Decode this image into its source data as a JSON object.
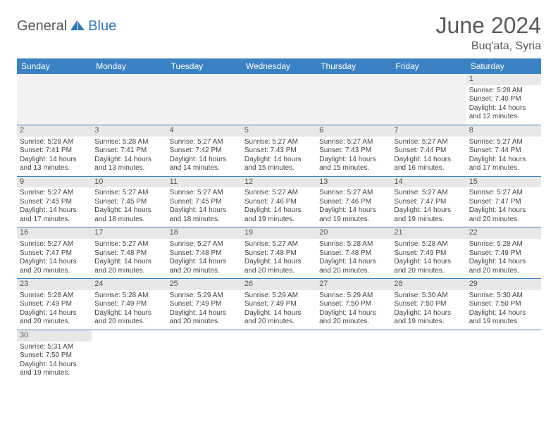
{
  "brand": {
    "general": "General",
    "blue": "Blue"
  },
  "title": "June 2024",
  "location": "Buq'ata, Syria",
  "colors": {
    "header_bg": "#3b82c4",
    "header_text": "#ffffff",
    "daynum_bg": "#e8e8e8",
    "empty_bg": "#f2f2f2",
    "text": "#444444",
    "title_color": "#5a5a5a",
    "blue": "#2f79bb"
  },
  "weekdays": [
    "Sunday",
    "Monday",
    "Tuesday",
    "Wednesday",
    "Thursday",
    "Friday",
    "Saturday"
  ],
  "weeks": [
    [
      null,
      null,
      null,
      null,
      null,
      null,
      {
        "n": "1",
        "sr": "5:28 AM",
        "ss": "7:40 PM",
        "dl": "14 hours and 12 minutes."
      }
    ],
    [
      {
        "n": "2",
        "sr": "5:28 AM",
        "ss": "7:41 PM",
        "dl": "14 hours and 13 minutes."
      },
      {
        "n": "3",
        "sr": "5:28 AM",
        "ss": "7:41 PM",
        "dl": "14 hours and 13 minutes."
      },
      {
        "n": "4",
        "sr": "5:27 AM",
        "ss": "7:42 PM",
        "dl": "14 hours and 14 minutes."
      },
      {
        "n": "5",
        "sr": "5:27 AM",
        "ss": "7:43 PM",
        "dl": "14 hours and 15 minutes."
      },
      {
        "n": "6",
        "sr": "5:27 AM",
        "ss": "7:43 PM",
        "dl": "14 hours and 15 minutes."
      },
      {
        "n": "7",
        "sr": "5:27 AM",
        "ss": "7:44 PM",
        "dl": "14 hours and 16 minutes."
      },
      {
        "n": "8",
        "sr": "5:27 AM",
        "ss": "7:44 PM",
        "dl": "14 hours and 17 minutes."
      }
    ],
    [
      {
        "n": "9",
        "sr": "5:27 AM",
        "ss": "7:45 PM",
        "dl": "14 hours and 17 minutes."
      },
      {
        "n": "10",
        "sr": "5:27 AM",
        "ss": "7:45 PM",
        "dl": "14 hours and 18 minutes."
      },
      {
        "n": "11",
        "sr": "5:27 AM",
        "ss": "7:45 PM",
        "dl": "14 hours and 18 minutes."
      },
      {
        "n": "12",
        "sr": "5:27 AM",
        "ss": "7:46 PM",
        "dl": "14 hours and 19 minutes."
      },
      {
        "n": "13",
        "sr": "5:27 AM",
        "ss": "7:46 PM",
        "dl": "14 hours and 19 minutes."
      },
      {
        "n": "14",
        "sr": "5:27 AM",
        "ss": "7:47 PM",
        "dl": "14 hours and 19 minutes."
      },
      {
        "n": "15",
        "sr": "5:27 AM",
        "ss": "7:47 PM",
        "dl": "14 hours and 20 minutes."
      }
    ],
    [
      {
        "n": "16",
        "sr": "5:27 AM",
        "ss": "7:47 PM",
        "dl": "14 hours and 20 minutes."
      },
      {
        "n": "17",
        "sr": "5:27 AM",
        "ss": "7:48 PM",
        "dl": "14 hours and 20 minutes."
      },
      {
        "n": "18",
        "sr": "5:27 AM",
        "ss": "7:48 PM",
        "dl": "14 hours and 20 minutes."
      },
      {
        "n": "19",
        "sr": "5:27 AM",
        "ss": "7:48 PM",
        "dl": "14 hours and 20 minutes."
      },
      {
        "n": "20",
        "sr": "5:28 AM",
        "ss": "7:48 PM",
        "dl": "14 hours and 20 minutes."
      },
      {
        "n": "21",
        "sr": "5:28 AM",
        "ss": "7:49 PM",
        "dl": "14 hours and 20 minutes."
      },
      {
        "n": "22",
        "sr": "5:28 AM",
        "ss": "7:49 PM",
        "dl": "14 hours and 20 minutes."
      }
    ],
    [
      {
        "n": "23",
        "sr": "5:28 AM",
        "ss": "7:49 PM",
        "dl": "14 hours and 20 minutes."
      },
      {
        "n": "24",
        "sr": "5:28 AM",
        "ss": "7:49 PM",
        "dl": "14 hours and 20 minutes."
      },
      {
        "n": "25",
        "sr": "5:29 AM",
        "ss": "7:49 PM",
        "dl": "14 hours and 20 minutes."
      },
      {
        "n": "26",
        "sr": "5:29 AM",
        "ss": "7:49 PM",
        "dl": "14 hours and 20 minutes."
      },
      {
        "n": "27",
        "sr": "5:29 AM",
        "ss": "7:50 PM",
        "dl": "14 hours and 20 minutes."
      },
      {
        "n": "28",
        "sr": "5:30 AM",
        "ss": "7:50 PM",
        "dl": "14 hours and 19 minutes."
      },
      {
        "n": "29",
        "sr": "5:30 AM",
        "ss": "7:50 PM",
        "dl": "14 hours and 19 minutes."
      }
    ],
    [
      {
        "n": "30",
        "sr": "5:31 AM",
        "ss": "7:50 PM",
        "dl": "14 hours and 19 minutes."
      },
      null,
      null,
      null,
      null,
      null,
      null
    ]
  ],
  "labels": {
    "sunrise": "Sunrise:",
    "sunset": "Sunset:",
    "daylight": "Daylight:"
  }
}
